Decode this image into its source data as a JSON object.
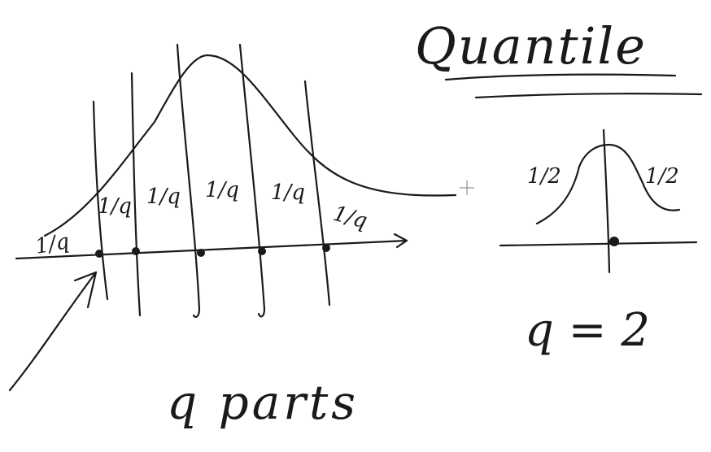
{
  "title": "Quantile",
  "left_diagram": {
    "fraction_label": "1/q",
    "fraction_count": 6,
    "divider_count": 5,
    "bottom_label": "q parts"
  },
  "right_diagram": {
    "left_label": "1/2",
    "right_label": "1/2",
    "caption": "q = 2"
  },
  "colors": {
    "ink": "#1a1a1a",
    "background": "#ffffff"
  }
}
